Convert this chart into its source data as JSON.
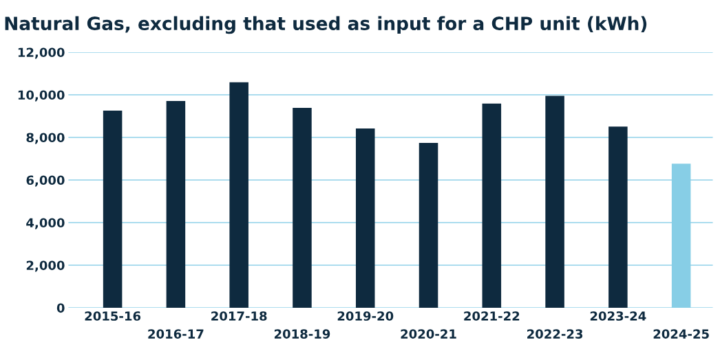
{
  "chart_data": {
    "type": "bar",
    "title": "Natural Gas, excluding that used as input for a CHP unit (kWh)",
    "categories": [
      "2015-16",
      "2016-17",
      "2017-18",
      "2018-19",
      "2019-20",
      "2020-21",
      "2021-22",
      "2022-23",
      "2023-24",
      "2024-25"
    ],
    "values": [
      9260,
      9710,
      10590,
      9390,
      8420,
      7740,
      9590,
      9950,
      8510,
      6770
    ],
    "colors": [
      "#0e2a3f",
      "#0e2a3f",
      "#0e2a3f",
      "#0e2a3f",
      "#0e2a3f",
      "#0e2a3f",
      "#0e2a3f",
      "#0e2a3f",
      "#0e2a3f",
      "#87cee6"
    ],
    "ylim": [
      0,
      12000
    ],
    "yticks": [
      {
        "value": 0,
        "label": "0"
      },
      {
        "value": 2000,
        "label": "2,000"
      },
      {
        "value": 4000,
        "label": "4,000"
      },
      {
        "value": 6000,
        "label": "6,000"
      },
      {
        "value": 8000,
        "label": "8,000"
      },
      {
        "value": 10000,
        "label": "10,000"
      },
      {
        "value": 12000,
        "label": "12,000"
      }
    ],
    "grid": "y",
    "legend": false
  }
}
